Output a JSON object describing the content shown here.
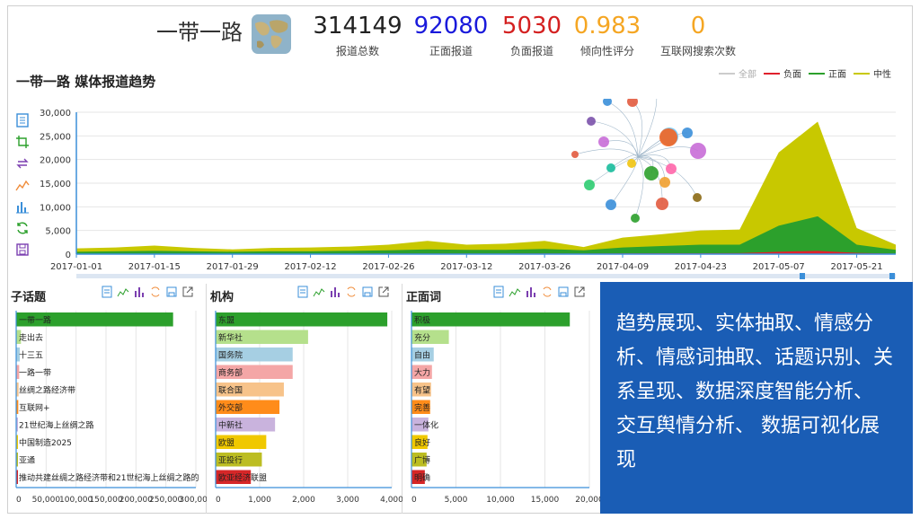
{
  "header": {
    "topic": "一带一路",
    "kpis": [
      {
        "value": "314149",
        "label": "报道总数",
        "color": "#222222"
      },
      {
        "value": "92080",
        "label": "正面报道",
        "color": "#1a1adb"
      },
      {
        "value": "5030",
        "label": "负面报道",
        "color": "#d42020"
      },
      {
        "value": "0.983",
        "label": "倾向性评分",
        "color": "#f5a623"
      },
      {
        "value": "0",
        "label": "互联网搜索次数",
        "color": "#f5a623"
      }
    ]
  },
  "trend": {
    "title": "一带一路 媒体报道趋势",
    "legend": [
      {
        "label": "全部",
        "color": "#cccccc"
      },
      {
        "label": "负面",
        "color": "#e0202c"
      },
      {
        "label": "正面",
        "color": "#2ca02c"
      },
      {
        "label": "中性",
        "color": "#c8c800"
      }
    ],
    "toolbox_icons": [
      "data-view-icon",
      "zoom-icon",
      "restore-icon",
      "line-chart-icon",
      "bar-chart-icon",
      "refresh-icon",
      "save-icon"
    ]
  },
  "chart_data": [
    {
      "type": "area",
      "title": "一带一路 媒体报道趋势",
      "x": [
        "2017-01-01",
        "2017-01-08",
        "2017-01-15",
        "2017-01-22",
        "2017-01-29",
        "2017-02-05",
        "2017-02-12",
        "2017-02-19",
        "2017-02-26",
        "2017-03-05",
        "2017-03-12",
        "2017-03-19",
        "2017-03-26",
        "2017-04-02",
        "2017-04-09",
        "2017-04-16",
        "2017-04-23",
        "2017-04-30",
        "2017-05-07",
        "2017-05-14",
        "2017-05-21",
        "2017-05-28"
      ],
      "x_ticks": [
        "2017-01-01",
        "2017-01-15",
        "2017-01-29",
        "2017-02-12",
        "2017-02-26",
        "2017-03-12",
        "2017-03-26",
        "2017-04-09",
        "2017-04-23",
        "2017-05-07",
        "2017-05-21"
      ],
      "y_ticks": [
        "0",
        "5,000",
        "10,000",
        "15,000",
        "20,000",
        "25,000",
        "30,000"
      ],
      "ylim": [
        0,
        30000
      ],
      "series": [
        {
          "name": "中性",
          "color": "#c8c800",
          "values": [
            1200,
            1400,
            1800,
            1300,
            1000,
            1300,
            1400,
            1600,
            2000,
            2800,
            2000,
            2200,
            2800,
            1500,
            3500,
            4200,
            5000,
            5200,
            21500,
            28000,
            5500,
            2000
          ]
        },
        {
          "name": "正面",
          "color": "#2ca02c",
          "values": [
            500,
            600,
            700,
            600,
            500,
            600,
            600,
            700,
            800,
            1000,
            900,
            900,
            1100,
            800,
            1400,
            1700,
            2000,
            2000,
            6000,
            8000,
            2000,
            900
          ]
        },
        {
          "name": "负面",
          "color": "#e0202c",
          "values": [
            80,
            90,
            100,
            90,
            80,
            90,
            90,
            100,
            110,
            130,
            120,
            120,
            140,
            110,
            160,
            180,
            200,
            220,
            500,
            700,
            250,
            100
          ]
        }
      ]
    },
    {
      "type": "bar",
      "title": "子话题",
      "orientation": "horizontal",
      "categories": [
        "一带一路",
        "走出去",
        "十三五",
        "一路一带",
        "丝绸之路经济带",
        "互联网+",
        "21世纪海上丝绸之路",
        "中国制造2025",
        "亚通",
        "推动共建丝绸之路经济带和21世纪海上丝绸之路的"
      ],
      "values": [
        262000,
        8000,
        6000,
        5000,
        4000,
        3500,
        3000,
        2500,
        2000,
        1500
      ],
      "colors": [
        "#2ca02c",
        "#b5e08c",
        "#a6cfe3",
        "#f4a6a6",
        "#f7c38a",
        "#ff8c1a",
        "#c9b3dd",
        "#f0c800",
        "#bcbd22",
        "#d62728"
      ],
      "x_ticks": [
        "0",
        "50,000",
        "100,000",
        "150,000",
        "200,000",
        "250,000",
        "300,000"
      ],
      "xlim": [
        0,
        300000
      ]
    },
    {
      "type": "bar",
      "title": "机构",
      "orientation": "horizontal",
      "categories": [
        "东盟",
        "新华社",
        "国务院",
        "商务部",
        "联合国",
        "外交部",
        "中新社",
        "欧盟",
        "亚投行",
        "欧亚经济联盟"
      ],
      "values": [
        3900,
        2100,
        1750,
        1750,
        1550,
        1450,
        1350,
        1150,
        1050,
        800
      ],
      "colors": [
        "#2ca02c",
        "#b5e08c",
        "#a6cfe3",
        "#f4a6a6",
        "#f7c38a",
        "#ff8c1a",
        "#c9b3dd",
        "#f0c800",
        "#bcbd22",
        "#d62728"
      ],
      "x_ticks": [
        "0",
        "1,000",
        "2,000",
        "3,000",
        "4,000"
      ],
      "xlim": [
        0,
        4000
      ]
    },
    {
      "type": "bar",
      "title": "正面词",
      "orientation": "horizontal",
      "categories": [
        "积极",
        "充分",
        "自由",
        "大力",
        "有望",
        "完善",
        "一体化",
        "良好",
        "广博",
        "明确"
      ],
      "values": [
        17800,
        4200,
        2500,
        2300,
        2200,
        2100,
        1900,
        1800,
        1700,
        1500
      ],
      "colors": [
        "#2ca02c",
        "#b5e08c",
        "#a6cfe3",
        "#f4a6a6",
        "#f7c38a",
        "#ff8c1a",
        "#c9b3dd",
        "#f0c800",
        "#bcbd22",
        "#d62728"
      ],
      "x_ticks": [
        "0",
        "5,000",
        "10,000",
        "15,000",
        "20,000"
      ],
      "xlim": [
        0,
        20000
      ]
    }
  ],
  "summary": {
    "text": "趋势展现、实体抽取、情感分析、情感词抽取、话题识别、关系呈现、数据深度智能分析、 交互舆情分析、 数据可视化展现"
  }
}
